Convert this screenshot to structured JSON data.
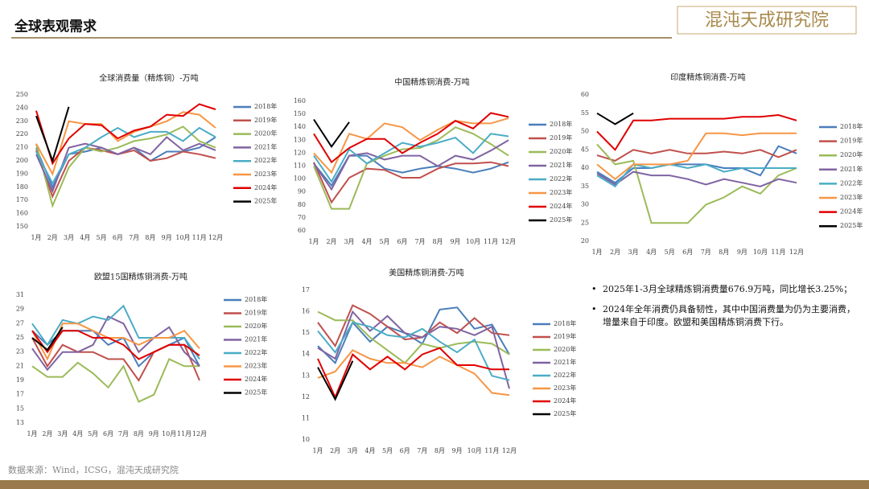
{
  "header": {
    "title": "全球表观需求",
    "logo": "混沌天成研究院"
  },
  "notes": [
    "2025年1-3月全球精炼铜消费量676.9万吨，同比增长3.25%；",
    "2024年全年消费仍具备韧性，其中中国消费量为仍为主要消费，增量来自于印度。欧盟和美国精炼铜消费下行。"
  ],
  "source": "数据来源：Wind，ICSG，混沌天成研究院",
  "chart_data": [
    {
      "type": "line",
      "title": "全球消费量（精炼铜）-万吨",
      "categories": [
        "1月",
        "2月",
        "3月",
        "4月",
        "5月",
        "6月",
        "7月",
        "8月",
        "9月",
        "10月",
        "11月",
        "12月"
      ],
      "ylim": [
        150,
        250
      ],
      "yticks": [
        150,
        160,
        170,
        180,
        190,
        200,
        210,
        220,
        230,
        240,
        250
      ],
      "series": [
        {
          "name": "2018年",
          "color": "#4a7ebb",
          "values": [
            210,
            180,
            205,
            207,
            210,
            205,
            210,
            200,
            207,
            207,
            210,
            218
          ]
        },
        {
          "name": "2019年",
          "color": "#c0504d",
          "values": [
            208,
            173,
            200,
            210,
            208,
            205,
            208,
            200,
            202,
            207,
            205,
            202
          ]
        },
        {
          "name": "2020年",
          "color": "#9bbb59",
          "values": [
            213,
            166,
            195,
            210,
            207,
            210,
            215,
            217,
            220,
            226,
            215,
            210
          ]
        },
        {
          "name": "2021年",
          "color": "#8064a2",
          "values": [
            205,
            177,
            210,
            213,
            210,
            205,
            210,
            205,
            218,
            208,
            213,
            208
          ]
        },
        {
          "name": "2022年",
          "color": "#4bacc6",
          "values": [
            207,
            183,
            205,
            210,
            218,
            225,
            218,
            222,
            222,
            215,
            225,
            218
          ]
        },
        {
          "name": "2023年",
          "color": "#f79646",
          "values": [
            213,
            190,
            230,
            228,
            228,
            215,
            222,
            226,
            230,
            237,
            235,
            225
          ]
        },
        {
          "name": "2024年",
          "color": "#e00000",
          "values": [
            238,
            198,
            217,
            228,
            227,
            217,
            223,
            226,
            235,
            234,
            243,
            239
          ]
        },
        {
          "name": "2025年",
          "color": "#000000",
          "values": [
            234,
            200,
            241,
            null,
            null,
            null,
            null,
            null,
            null,
            null,
            null,
            null
          ]
        }
      ]
    },
    {
      "type": "line",
      "title": "中国精炼铜消费-万吨",
      "categories": [
        "1月",
        "2月",
        "3月",
        "4月",
        "5月",
        "6月",
        "7月",
        "8月",
        "9月",
        "10月",
        "11月",
        "12月"
      ],
      "ylim": [
        60,
        160
      ],
      "yticks": [
        60,
        70,
        80,
        90,
        100,
        110,
        120,
        130,
        140,
        150,
        160
      ],
      "series": [
        {
          "name": "2018年",
          "color": "#4a7ebb",
          "values": [
            112,
            95,
            118,
            118,
            108,
            105,
            108,
            110,
            108,
            105,
            108,
            113
          ]
        },
        {
          "name": "2019年",
          "color": "#c0504d",
          "values": [
            113,
            82,
            101,
            108,
            107,
            101,
            101,
            108,
            112,
            112,
            113,
            110
          ]
        },
        {
          "name": "2020年",
          "color": "#9bbb59",
          "values": [
            110,
            77,
            77,
            112,
            118,
            123,
            124,
            130,
            140,
            135,
            127,
            118
          ]
        },
        {
          "name": "2021年",
          "color": "#8064a2",
          "values": [
            112,
            92,
            118,
            120,
            115,
            118,
            118,
            110,
            118,
            115,
            122,
            130
          ]
        },
        {
          "name": "2022年",
          "color": "#4bacc6",
          "values": [
            118,
            98,
            123,
            112,
            120,
            128,
            125,
            128,
            132,
            120,
            135,
            133
          ]
        },
        {
          "name": "2023年",
          "color": "#f79646",
          "values": [
            120,
            105,
            135,
            131,
            143,
            140,
            130,
            138,
            145,
            143,
            143,
            147
          ]
        },
        {
          "name": "2024年",
          "color": "#e00000",
          "values": [
            135,
            113,
            124,
            131,
            131,
            120,
            128,
            135,
            145,
            139,
            151,
            148
          ]
        },
        {
          "name": "2025年",
          "color": "#000000",
          "values": [
            146,
            125,
            144,
            null,
            null,
            null,
            null,
            null,
            null,
            null,
            null,
            null
          ]
        }
      ]
    },
    {
      "type": "line",
      "title": "印度精炼铜消费-万吨",
      "categories": [
        "1月",
        "2月",
        "3月",
        "4月",
        "5月",
        "6月",
        "7月",
        "8月",
        "9月",
        "10月",
        "11月",
        "12月"
      ],
      "ylim": [
        20,
        60
      ],
      "yticks": [
        20,
        25,
        30,
        35,
        40,
        45,
        50,
        55,
        60
      ],
      "series": [
        {
          "name": "2018年",
          "color": "#4a7ebb",
          "values": [
            39,
            36,
            40,
            40,
            41,
            41,
            41,
            40,
            40,
            38,
            46,
            44
          ]
        },
        {
          "name": "2019年",
          "color": "#c0504d",
          "values": [
            43.5,
            42,
            45,
            44,
            45,
            44,
            44,
            44.5,
            44,
            45,
            43,
            45
          ]
        },
        {
          "name": "2020年",
          "color": "#9bbb59",
          "values": [
            46.5,
            41,
            42,
            25,
            25,
            25,
            30,
            32,
            35,
            33,
            38,
            40
          ]
        },
        {
          "name": "2021年",
          "color": "#8064a2",
          "values": [
            38.5,
            35.5,
            39,
            38,
            38,
            37,
            35.5,
            37,
            36,
            35,
            37,
            36
          ]
        },
        {
          "name": "2022年",
          "color": "#4bacc6",
          "values": [
            38,
            35,
            41,
            40,
            41,
            40,
            41,
            39,
            40,
            40,
            40,
            40
          ]
        },
        {
          "name": "2023年",
          "color": "#f79646",
          "values": [
            41,
            37,
            41,
            41,
            41,
            42,
            49.5,
            49.5,
            49,
            49.5,
            49.5,
            49.5
          ]
        },
        {
          "name": "2024年",
          "color": "#e00000",
          "values": [
            50,
            45,
            53,
            53,
            53.5,
            53.5,
            53.5,
            53.5,
            54,
            54,
            54.5,
            53
          ]
        },
        {
          "name": "2025年",
          "color": "#000000",
          "values": [
            55,
            52,
            55,
            null,
            null,
            null,
            null,
            null,
            null,
            null,
            null,
            null
          ]
        }
      ]
    },
    {
      "type": "line",
      "title": "欧盟15国精炼铜消费-万吨",
      "categories": [
        "1月",
        "2月",
        "3月",
        "4月",
        "5月",
        "6月",
        "7月",
        "8月",
        "9月",
        "10月",
        "11月",
        "12月"
      ],
      "ylim": [
        13,
        31
      ],
      "yticks": [
        13,
        15,
        17,
        19,
        21,
        23,
        25,
        27,
        29,
        31
      ],
      "series": [
        {
          "name": "2018年",
          "color": "#4a7ebb",
          "values": [
            26,
            24,
            26,
            26,
            26,
            24,
            25,
            21,
            23,
            24,
            25,
            21
          ]
        },
        {
          "name": "2019年",
          "color": "#c0504d",
          "values": [
            25,
            21,
            24,
            23,
            23,
            22,
            22,
            19,
            23,
            24,
            24,
            19
          ]
        },
        {
          "name": "2020年",
          "color": "#9bbb59",
          "values": [
            21,
            19.5,
            19.5,
            21.5,
            20,
            18,
            21,
            16,
            17,
            22,
            21,
            21
          ]
        },
        {
          "name": "2021年",
          "color": "#8064a2",
          "values": [
            23.5,
            20.5,
            23,
            23,
            24,
            28,
            27,
            23,
            25,
            26.5,
            23,
            21
          ]
        },
        {
          "name": "2022年",
          "color": "#4bacc6",
          "values": [
            27,
            24,
            27.5,
            27,
            28,
            27.5,
            29.5,
            25,
            25,
            25,
            25,
            22
          ]
        },
        {
          "name": "2023年",
          "color": "#f79646",
          "values": [
            26,
            22,
            27,
            27,
            26,
            25,
            25,
            24,
            25,
            25,
            26,
            23.5
          ]
        },
        {
          "name": "2024年",
          "color": "#e00000",
          "values": [
            26,
            23,
            26,
            26,
            25,
            25,
            24,
            22,
            23,
            24,
            24,
            22.5
          ]
        },
        {
          "name": "2025年",
          "color": "#000000",
          "values": [
            25,
            23.3,
            26.5,
            null,
            null,
            null,
            null,
            null,
            null,
            null,
            null,
            null
          ]
        }
      ]
    },
    {
      "type": "line",
      "title": "美国精炼铜消费-万吨",
      "categories": [
        "1月",
        "2月",
        "3月",
        "4月",
        "5月",
        "6月",
        "7月",
        "8月",
        "9月",
        "10月",
        "11月",
        "12月"
      ],
      "ylim": [
        10,
        17
      ],
      "yticks": [
        10,
        11,
        12,
        13,
        14,
        15,
        16,
        17
      ],
      "series": [
        {
          "name": "2018年",
          "color": "#4a7ebb",
          "values": [
            14.4,
            13.6,
            15.5,
            14.6,
            15.3,
            15,
            14.5,
            16.1,
            16.2,
            15.2,
            15.4,
            14
          ]
        },
        {
          "name": "2019年",
          "color": "#c0504d",
          "values": [
            15.5,
            14.4,
            16.3,
            15.9,
            15.3,
            14.7,
            14.8,
            15.5,
            15,
            15.7,
            15,
            14.9
          ]
        },
        {
          "name": "2020年",
          "color": "#9bbb59",
          "values": [
            16,
            15.6,
            15.6,
            14.8,
            14.2,
            13.6,
            14.5,
            14.3,
            14.5,
            14.6,
            14.5,
            14
          ]
        },
        {
          "name": "2021年",
          "color": "#8064a2",
          "values": [
            14.3,
            13.8,
            16,
            15.1,
            15.8,
            15,
            14.8,
            15.3,
            15.2,
            14.9,
            15.3,
            12.4
          ]
        },
        {
          "name": "2022年",
          "color": "#4bacc6",
          "values": [
            15.1,
            14.1,
            15.5,
            15.3,
            14.9,
            14.8,
            15.2,
            14.6,
            14.1,
            14.7,
            13,
            12.8
          ]
        },
        {
          "name": "2023年",
          "color": "#f79646",
          "values": [
            12.9,
            13.2,
            14.2,
            13.8,
            13.6,
            13.6,
            13.4,
            13.9,
            13.5,
            13.1,
            12.2,
            12.1
          ]
        },
        {
          "name": "2024年",
          "color": "#e00000",
          "values": [
            13.8,
            12,
            14,
            13.3,
            13.9,
            13.3,
            14,
            14.3,
            13.5,
            13.5,
            13.3,
            13.3
          ]
        },
        {
          "name": "2025年",
          "color": "#000000",
          "values": [
            13.4,
            11.9,
            13.7,
            null,
            null,
            null,
            null,
            null,
            null,
            null,
            null,
            null
          ]
        }
      ]
    }
  ]
}
